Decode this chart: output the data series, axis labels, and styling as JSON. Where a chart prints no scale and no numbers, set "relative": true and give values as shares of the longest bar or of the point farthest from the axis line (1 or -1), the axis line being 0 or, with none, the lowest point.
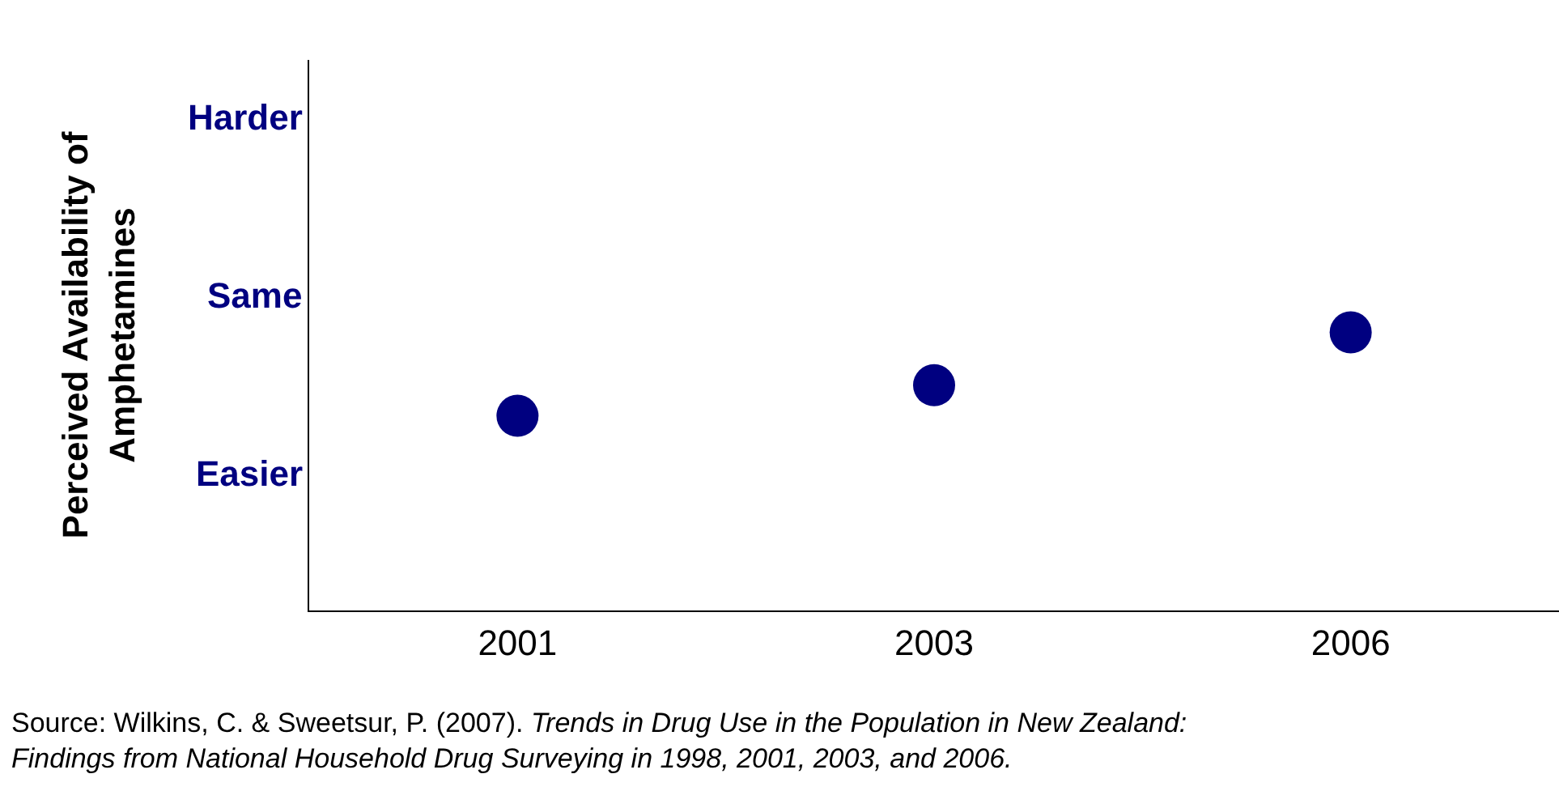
{
  "chart_data": {
    "type": "scatter",
    "ylabel": "Perceived Availability of Amphetamines",
    "categories": [
      "2001",
      "2003",
      "2006"
    ],
    "series": [
      {
        "color": "#000080",
        "values": [
          0.7,
          0.81,
          1
        ]
      }
    ],
    "relative": true,
    "marker": "circle",
    "annotations": [
      "Harder",
      "Same",
      "Easier",
      "Source: Wilkins, C. & Sweetsur, P. (2007).",
      "Trends in Drug Use in the Population in New Zealand: Findings from National Household Drug Surveying in 1998, 2001, 2003, and 2006."
    ]
  }
}
